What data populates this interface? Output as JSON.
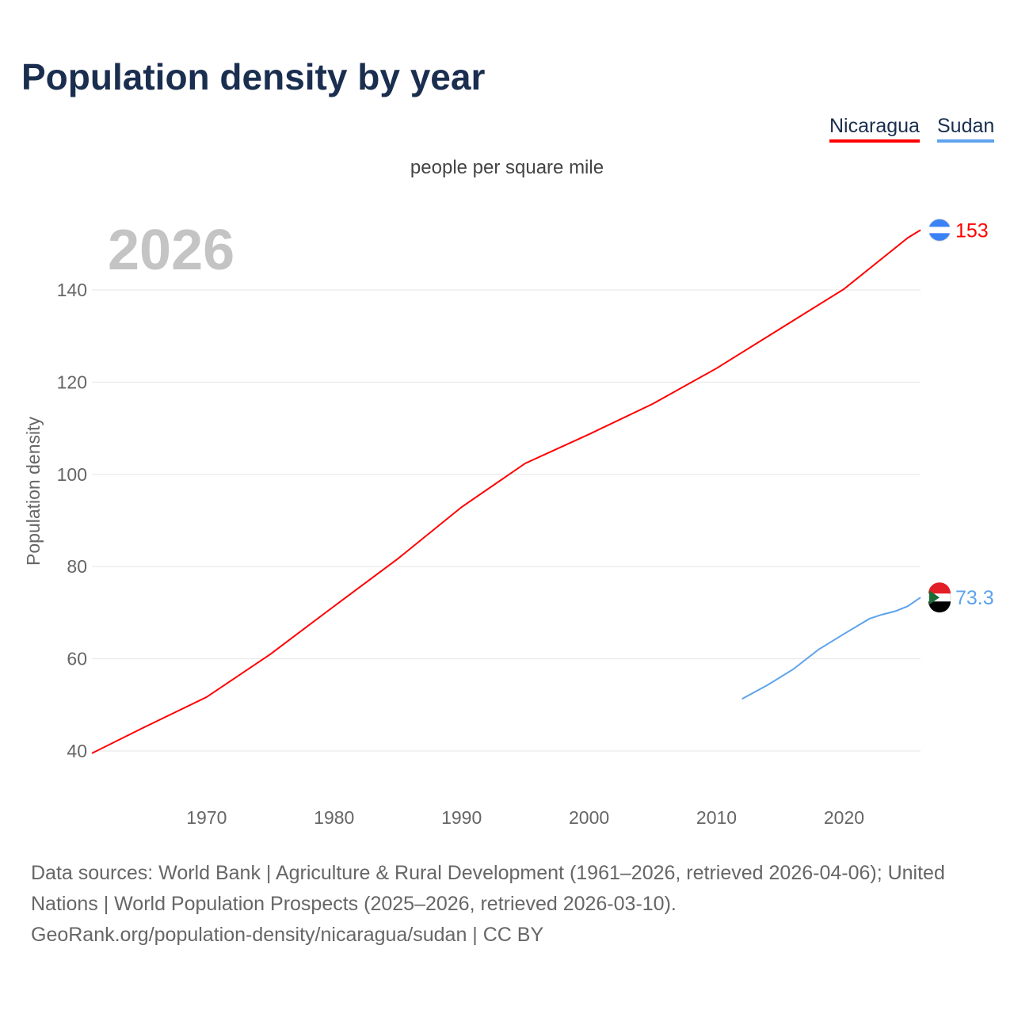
{
  "chart_data": {
    "type": "line",
    "title": "Population density by year",
    "subtitle": "people per square mile",
    "ylabel": "Population density",
    "xlabel": "",
    "year_watermark": "2026",
    "xlim": [
      1961,
      2026
    ],
    "ylim": [
      30,
      160
    ],
    "yticks": [
      40,
      60,
      80,
      100,
      120,
      140
    ],
    "xticks": [
      1970,
      1980,
      1990,
      2000,
      2010,
      2020
    ],
    "grid": true,
    "legend_position": "top-right",
    "series": [
      {
        "name": "Nicaragua",
        "color": "#ff0000",
        "end_label": "153",
        "x": [
          1961,
          1965,
          1970,
          1975,
          1980,
          1985,
          1990,
          1995,
          2000,
          2005,
          2010,
          2015,
          2020,
          2025,
          2026
        ],
        "y": [
          39.5,
          45,
          51.7,
          61,
          71.4,
          81.7,
          92.9,
          102.4,
          108.7,
          115.3,
          123,
          131.6,
          140.2,
          151.3,
          153
        ]
      },
      {
        "name": "Sudan",
        "color": "#5ea3ec",
        "end_label": "73.3",
        "x": [
          2012,
          2014,
          2016,
          2018,
          2020,
          2022,
          2023,
          2024,
          2025,
          2026
        ],
        "y": [
          51.3,
          54.3,
          57.7,
          62,
          65.4,
          68.7,
          69.6,
          70.3,
          71.4,
          73.3
        ]
      }
    ]
  },
  "footer": {
    "line1": "Data sources: World Bank | Agriculture & Rural Development (1961–2026, retrieved 2026-04-06); United Nations | World Population Prospects (2025–2026, retrieved 2026-03-10).",
    "line2": "GeoRank.org/population-density/nicaragua/sudan | CC BY"
  }
}
